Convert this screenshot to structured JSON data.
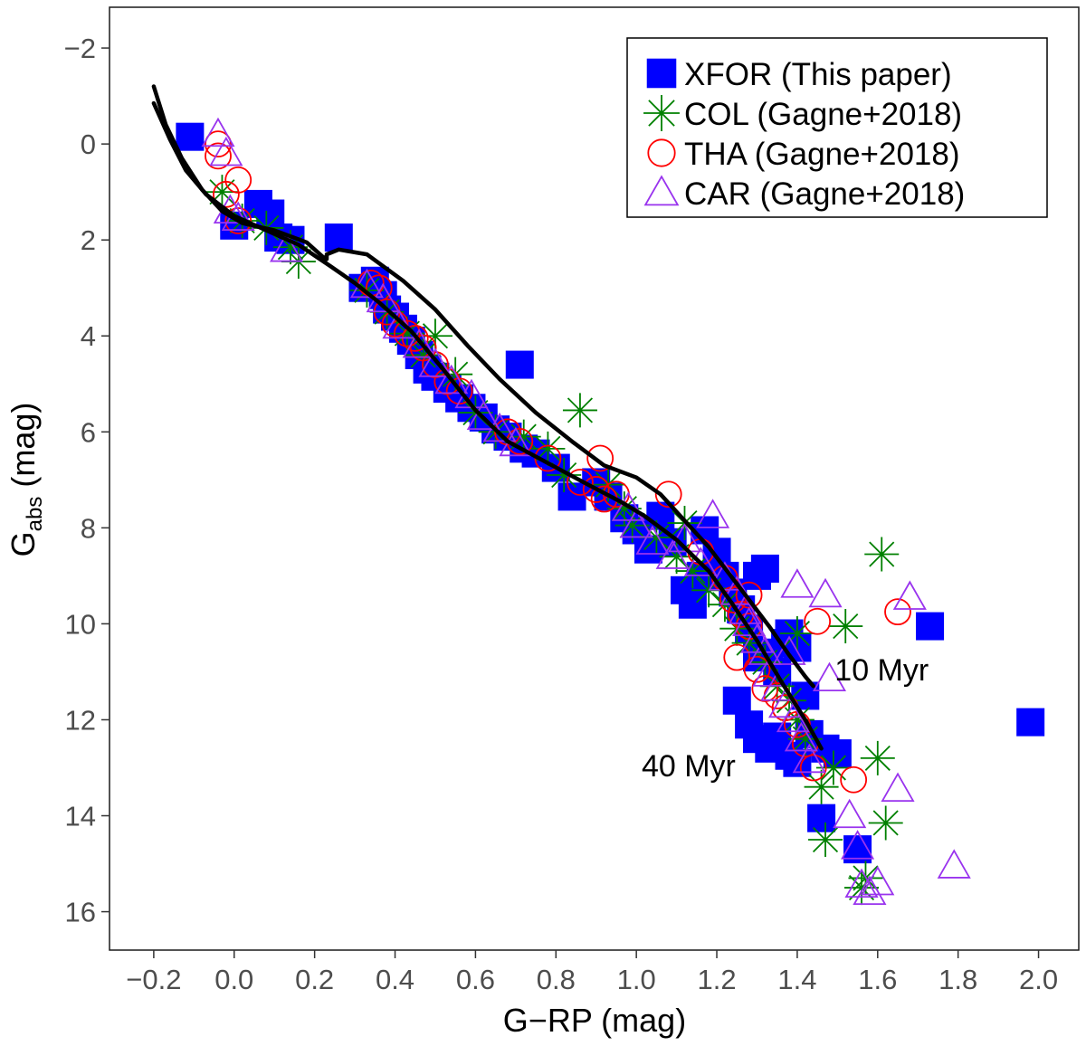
{
  "chart_data": {
    "type": "scatter",
    "title": "",
    "xlabel": "G−RP (mag)",
    "ylabel_main": "G",
    "ylabel_sub": "abs",
    "ylabel_unit": " (mag)",
    "xlim": [
      -0.31,
      2.1
    ],
    "ylim": [
      16.8,
      -2.85
    ],
    "y_reversed": true,
    "grid": false,
    "x_ticks": [
      -0.2,
      0.0,
      0.2,
      0.4,
      0.6,
      0.8,
      1.0,
      1.2,
      1.4,
      1.6,
      1.8,
      2.0
    ],
    "x_tick_labels": [
      "−0.2",
      "0.0",
      "0.2",
      "0.4",
      "0.6",
      "0.8",
      "1.0",
      "1.2",
      "1.4",
      "1.6",
      "1.8",
      "2.0"
    ],
    "y_ticks": [
      -2,
      0,
      2,
      4,
      6,
      8,
      10,
      12,
      14,
      16
    ],
    "y_tick_labels": [
      "−2",
      "0",
      "2",
      "4",
      "6",
      "8",
      "10",
      "12",
      "14",
      "16"
    ],
    "legend": {
      "position": "top-right",
      "entries": [
        {
          "label": "XFOR (This paper)",
          "marker": "square",
          "color": "#0000ff"
        },
        {
          "label": "COL (Gagne+2018)",
          "marker": "asterisk",
          "color": "#008000"
        },
        {
          "label": "THA (Gagne+2018)",
          "marker": "circle-open",
          "color": "#ff0000"
        },
        {
          "label": "CAR (Gagne+2018)",
          "marker": "triangle-open",
          "color": "#9933ee"
        }
      ]
    },
    "annotations": [
      {
        "text": "10 Myr",
        "x": 1.61,
        "y": 10.95
      },
      {
        "text": "40 Myr",
        "x": 1.13,
        "y": 12.95
      }
    ],
    "series": [
      {
        "name": "XFOR (This paper)",
        "marker": "square",
        "color": "#0000ff",
        "points": [
          [
            -0.11,
            -0.15
          ],
          [
            0.0,
            1.7
          ],
          [
            0.06,
            1.25
          ],
          [
            0.09,
            1.45
          ],
          [
            0.11,
            1.95
          ],
          [
            0.14,
            2.0
          ],
          [
            0.26,
            1.95
          ],
          [
            0.32,
            3.0
          ],
          [
            0.35,
            2.85
          ],
          [
            0.37,
            3.15
          ],
          [
            0.38,
            3.45
          ],
          [
            0.4,
            3.6
          ],
          [
            0.42,
            3.85
          ],
          [
            0.44,
            4.1
          ],
          [
            0.46,
            4.4
          ],
          [
            0.48,
            4.7
          ],
          [
            0.5,
            4.85
          ],
          [
            0.53,
            5.1
          ],
          [
            0.56,
            5.3
          ],
          [
            0.59,
            5.5
          ],
          [
            0.62,
            5.7
          ],
          [
            0.65,
            5.95
          ],
          [
            0.68,
            6.1
          ],
          [
            0.71,
            4.6
          ],
          [
            0.72,
            6.35
          ],
          [
            0.75,
            6.45
          ],
          [
            0.8,
            6.75
          ],
          [
            0.84,
            7.35
          ],
          [
            0.9,
            7.05
          ],
          [
            0.93,
            7.35
          ],
          [
            0.97,
            7.8
          ],
          [
            1.0,
            8.05
          ],
          [
            1.03,
            8.45
          ],
          [
            1.06,
            7.75
          ],
          [
            1.09,
            8.3
          ],
          [
            1.12,
            9.3
          ],
          [
            1.14,
            9.6
          ],
          [
            1.17,
            8.05
          ],
          [
            1.2,
            8.5
          ],
          [
            1.22,
            9.0
          ],
          [
            1.24,
            9.35
          ],
          [
            1.26,
            9.7
          ],
          [
            1.28,
            10.1
          ],
          [
            1.3,
            9.0
          ],
          [
            1.32,
            8.85
          ],
          [
            1.33,
            10.6
          ],
          [
            1.35,
            11.0
          ],
          [
            1.37,
            10.4
          ],
          [
            1.38,
            10.2
          ],
          [
            1.4,
            10.5
          ],
          [
            1.42,
            11.5
          ],
          [
            1.25,
            11.6
          ],
          [
            1.28,
            12.1
          ],
          [
            1.3,
            12.4
          ],
          [
            1.33,
            12.6
          ],
          [
            1.35,
            12.35
          ],
          [
            1.38,
            12.75
          ],
          [
            1.4,
            12.9
          ],
          [
            1.43,
            12.3
          ],
          [
            1.47,
            12.6
          ],
          [
            1.5,
            12.7
          ],
          [
            1.46,
            14.05
          ],
          [
            1.55,
            14.7
          ],
          [
            1.73,
            10.05
          ],
          [
            1.98,
            12.05
          ],
          [
            1.16,
            9.0
          ],
          [
            1.3,
            10.7
          ]
        ]
      },
      {
        "name": "COL (Gagne+2018)",
        "marker": "asterisk",
        "color": "#008000",
        "points": [
          [
            -0.03,
            1.0
          ],
          [
            0.02,
            1.6
          ],
          [
            0.08,
            1.75
          ],
          [
            0.14,
            2.15
          ],
          [
            0.16,
            2.45
          ],
          [
            0.33,
            3.05
          ],
          [
            0.38,
            3.5
          ],
          [
            0.43,
            3.95
          ],
          [
            0.5,
            4.0
          ],
          [
            0.55,
            4.8
          ],
          [
            0.6,
            5.6
          ],
          [
            0.65,
            6.0
          ],
          [
            0.78,
            6.35
          ],
          [
            0.82,
            6.9
          ],
          [
            0.86,
            5.55
          ],
          [
            0.93,
            7.1
          ],
          [
            0.97,
            7.6
          ],
          [
            0.99,
            7.95
          ],
          [
            1.05,
            8.2
          ],
          [
            1.1,
            8.6
          ],
          [
            1.12,
            7.9
          ],
          [
            1.14,
            8.9
          ],
          [
            1.18,
            9.3
          ],
          [
            1.22,
            9.6
          ],
          [
            1.25,
            10.1
          ],
          [
            1.28,
            10.4
          ],
          [
            1.32,
            10.8
          ],
          [
            1.35,
            11.3
          ],
          [
            1.38,
            11.6
          ],
          [
            1.4,
            12.0
          ],
          [
            1.42,
            12.4
          ],
          [
            1.46,
            13.4
          ],
          [
            1.47,
            14.5
          ],
          [
            1.49,
            13.0
          ],
          [
            1.52,
            10.05
          ],
          [
            1.61,
            8.55
          ],
          [
            1.6,
            12.8
          ],
          [
            1.62,
            14.15
          ],
          [
            1.57,
            15.3
          ],
          [
            1.56,
            15.5
          ],
          [
            1.4,
            10.2
          ],
          [
            0.72,
            6.1
          ],
          [
            0.47,
            4.4
          ]
        ]
      },
      {
        "name": "THA (Gagne+2018)",
        "marker": "circle-open",
        "color": "#ff0000",
        "points": [
          [
            -0.04,
            0.0
          ],
          [
            -0.04,
            0.25
          ],
          [
            0.01,
            0.75
          ],
          [
            -0.02,
            1.05
          ],
          [
            0.01,
            1.6
          ],
          [
            0.34,
            2.9
          ],
          [
            0.36,
            3.0
          ],
          [
            0.38,
            3.5
          ],
          [
            0.4,
            3.75
          ],
          [
            0.43,
            3.95
          ],
          [
            0.45,
            4.05
          ],
          [
            0.47,
            4.25
          ],
          [
            0.5,
            4.6
          ],
          [
            0.53,
            4.95
          ],
          [
            0.56,
            5.15
          ],
          [
            0.68,
            6.0
          ],
          [
            0.71,
            6.2
          ],
          [
            0.78,
            6.55
          ],
          [
            0.86,
            7.05
          ],
          [
            0.91,
            6.55
          ],
          [
            0.9,
            7.2
          ],
          [
            0.92,
            7.4
          ],
          [
            0.95,
            7.3
          ],
          [
            1.08,
            7.3
          ],
          [
            1.16,
            8.5
          ],
          [
            1.22,
            9.05
          ],
          [
            1.24,
            9.5
          ],
          [
            1.26,
            9.8
          ],
          [
            1.28,
            10.05
          ],
          [
            1.25,
            10.7
          ],
          [
            1.3,
            10.95
          ],
          [
            1.32,
            11.35
          ],
          [
            1.35,
            11.5
          ],
          [
            1.37,
            11.75
          ],
          [
            1.4,
            12.1
          ],
          [
            1.42,
            12.5
          ],
          [
            1.44,
            13.0
          ],
          [
            1.45,
            9.95
          ],
          [
            1.54,
            13.25
          ],
          [
            1.65,
            9.75
          ],
          [
            1.28,
            9.4
          ]
        ]
      },
      {
        "name": "CAR (Gagne+2018)",
        "marker": "triangle-open",
        "color": "#9933ee",
        "points": [
          [
            -0.04,
            -0.2
          ],
          [
            -0.02,
            0.2
          ],
          [
            -0.01,
            1.4
          ],
          [
            0.01,
            1.55
          ],
          [
            0.13,
            2.2
          ],
          [
            0.33,
            2.95
          ],
          [
            0.37,
            3.25
          ],
          [
            0.41,
            3.8
          ],
          [
            0.46,
            4.2
          ],
          [
            0.5,
            4.6
          ],
          [
            0.54,
            4.95
          ],
          [
            0.59,
            5.25
          ],
          [
            0.62,
            5.7
          ],
          [
            0.66,
            5.95
          ],
          [
            0.7,
            6.25
          ],
          [
            0.98,
            7.6
          ],
          [
            1.0,
            7.95
          ],
          [
            1.04,
            8.3
          ],
          [
            1.09,
            8.6
          ],
          [
            1.12,
            8.25
          ],
          [
            1.16,
            8.75
          ],
          [
            1.19,
            7.75
          ],
          [
            1.22,
            9.05
          ],
          [
            1.25,
            9.35
          ],
          [
            1.27,
            9.75
          ],
          [
            1.28,
            10.0
          ],
          [
            1.3,
            10.35
          ],
          [
            1.32,
            10.6
          ],
          [
            1.33,
            11.05
          ],
          [
            1.35,
            11.35
          ],
          [
            1.37,
            11.7
          ],
          [
            1.39,
            12.0
          ],
          [
            1.4,
            9.2
          ],
          [
            1.41,
            12.4
          ],
          [
            1.43,
            12.85
          ],
          [
            1.47,
            9.4
          ],
          [
            1.48,
            11.15
          ],
          [
            1.53,
            14.0
          ],
          [
            1.55,
            14.65
          ],
          [
            1.56,
            15.45
          ],
          [
            1.58,
            15.6
          ],
          [
            1.6,
            15.4
          ],
          [
            1.65,
            13.45
          ],
          [
            1.68,
            9.45
          ],
          [
            1.79,
            15.05
          ],
          [
            1.38,
            10.6
          ]
        ]
      }
    ],
    "isochrones": [
      {
        "label": "10 Myr",
        "points": [
          [
            -0.2,
            -1.2
          ],
          [
            -0.17,
            -0.4
          ],
          [
            -0.13,
            0.3
          ],
          [
            -0.08,
            0.95
          ],
          [
            -0.03,
            1.4
          ],
          [
            0.02,
            1.65
          ],
          [
            0.1,
            1.8
          ],
          [
            0.18,
            2.05
          ],
          [
            0.22,
            2.35
          ],
          [
            0.23,
            2.4
          ],
          [
            0.23,
            2.3
          ],
          [
            0.26,
            2.2
          ],
          [
            0.33,
            2.3
          ],
          [
            0.42,
            2.85
          ],
          [
            0.5,
            3.45
          ],
          [
            0.58,
            4.2
          ],
          [
            0.66,
            4.9
          ],
          [
            0.75,
            5.6
          ],
          [
            0.84,
            6.2
          ],
          [
            0.92,
            6.7
          ],
          [
            1.0,
            6.95
          ],
          [
            1.06,
            7.3
          ],
          [
            1.12,
            7.85
          ],
          [
            1.18,
            8.4
          ],
          [
            1.23,
            8.95
          ],
          [
            1.28,
            9.5
          ],
          [
            1.33,
            10.05
          ],
          [
            1.38,
            10.65
          ],
          [
            1.42,
            11.1
          ],
          [
            1.44,
            11.3
          ]
        ]
      },
      {
        "label": "40 Myr",
        "points": [
          [
            -0.2,
            -0.85
          ],
          [
            -0.16,
            -0.1
          ],
          [
            -0.12,
            0.55
          ],
          [
            -0.07,
            1.05
          ],
          [
            0.0,
            1.5
          ],
          [
            0.08,
            1.8
          ],
          [
            0.16,
            2.1
          ],
          [
            0.24,
            2.55
          ],
          [
            0.3,
            2.9
          ],
          [
            0.36,
            3.3
          ],
          [
            0.44,
            3.9
          ],
          [
            0.52,
            4.7
          ],
          [
            0.6,
            5.55
          ],
          [
            0.68,
            6.2
          ],
          [
            0.78,
            6.65
          ],
          [
            0.88,
            7.1
          ],
          [
            0.96,
            7.45
          ],
          [
            1.02,
            7.75
          ],
          [
            1.1,
            8.25
          ],
          [
            1.18,
            8.9
          ],
          [
            1.24,
            9.6
          ],
          [
            1.3,
            10.35
          ],
          [
            1.36,
            11.2
          ],
          [
            1.42,
            12.0
          ],
          [
            1.46,
            12.6
          ]
        ]
      }
    ]
  }
}
